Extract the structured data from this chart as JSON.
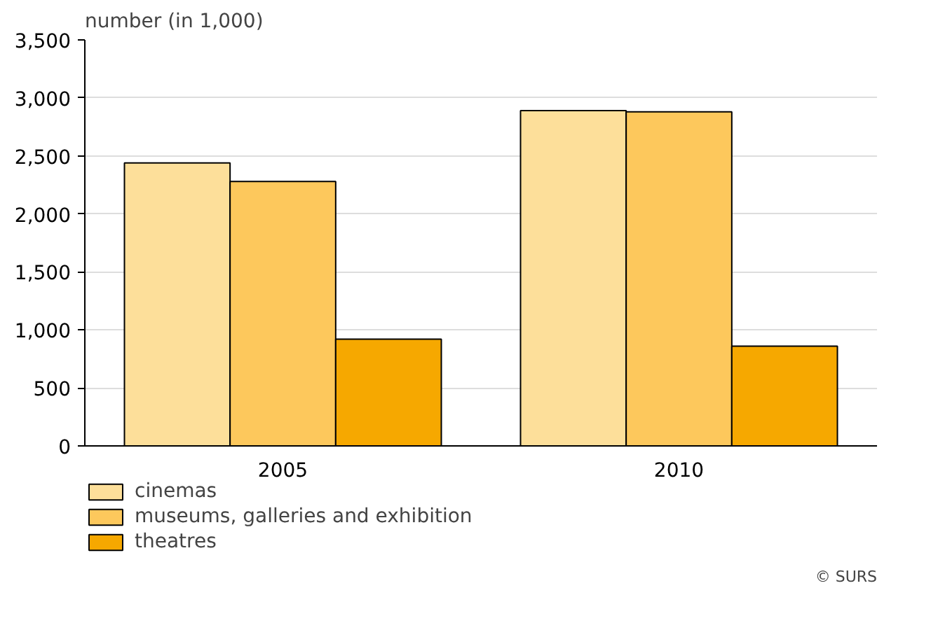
{
  "chart_data": {
    "type": "bar",
    "ylabel": "number (in 1,000)",
    "categories": [
      "2005",
      "2010"
    ],
    "series": [
      {
        "name": "cinemas",
        "color": "#fddf9a",
        "values": [
          2440,
          2890
        ]
      },
      {
        "name": "museums, galleries and exhibition",
        "color": "#fdc85c",
        "values": [
          2280,
          2880
        ]
      },
      {
        "name": "theatres",
        "color": "#f6a800",
        "values": [
          920,
          860
        ]
      }
    ],
    "ylim": [
      0,
      3500
    ],
    "yticks": [
      {
        "value": 0,
        "label": "0"
      },
      {
        "value": 500,
        "label": "500"
      },
      {
        "value": 1000,
        "label": "1,000"
      },
      {
        "value": 1500,
        "label": "1,500"
      },
      {
        "value": 2000,
        "label": "2,000"
      },
      {
        "value": 2500,
        "label": "2,500"
      },
      {
        "value": 3000,
        "label": "3,000"
      },
      {
        "value": 3500,
        "label": "3,500"
      }
    ],
    "grid": "y",
    "legend": "bottom left",
    "annotations": [
      "© SURS"
    ]
  }
}
